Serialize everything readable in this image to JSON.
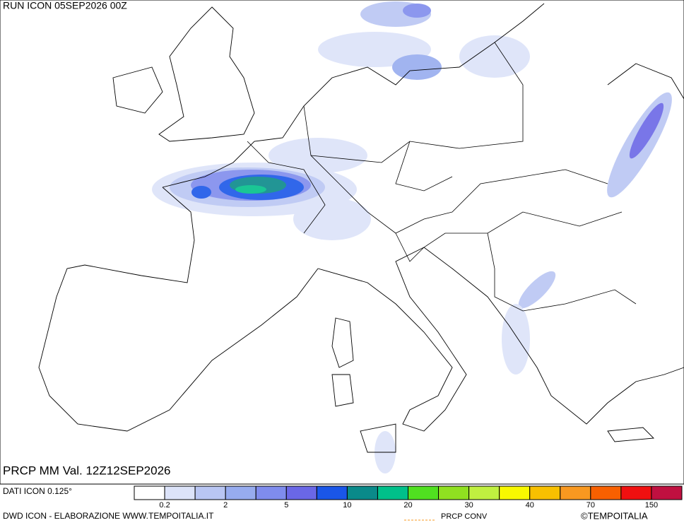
{
  "header": {
    "run": "RUN ICON 05SEP2026 00Z",
    "field": "PRCP MM Val. 12Z12SEP2026"
  },
  "legend": {
    "source": "DATI ICON 0.125°",
    "colors": [
      "#ffffff",
      "#dce3f9",
      "#b9c6f3",
      "#97acef",
      "#7f8ced",
      "#6a67e6",
      "#1a56e8",
      "#0a8a8a",
      "#00c08a",
      "#50e020",
      "#90e020",
      "#c0f040",
      "#f8f800",
      "#f8c000",
      "#f89820",
      "#f86000",
      "#f01010",
      "#c01040"
    ],
    "labels": [
      0.2,
      2,
      5,
      10,
      20,
      30,
      40,
      70,
      150
    ]
  },
  "footer": {
    "credit": "DWD ICON - ELABORAZIONE WWW.TEMPOITALIA.IT",
    "conv": "PRCP CONV",
    "copyright": "©TEMPOITALIA"
  }
}
